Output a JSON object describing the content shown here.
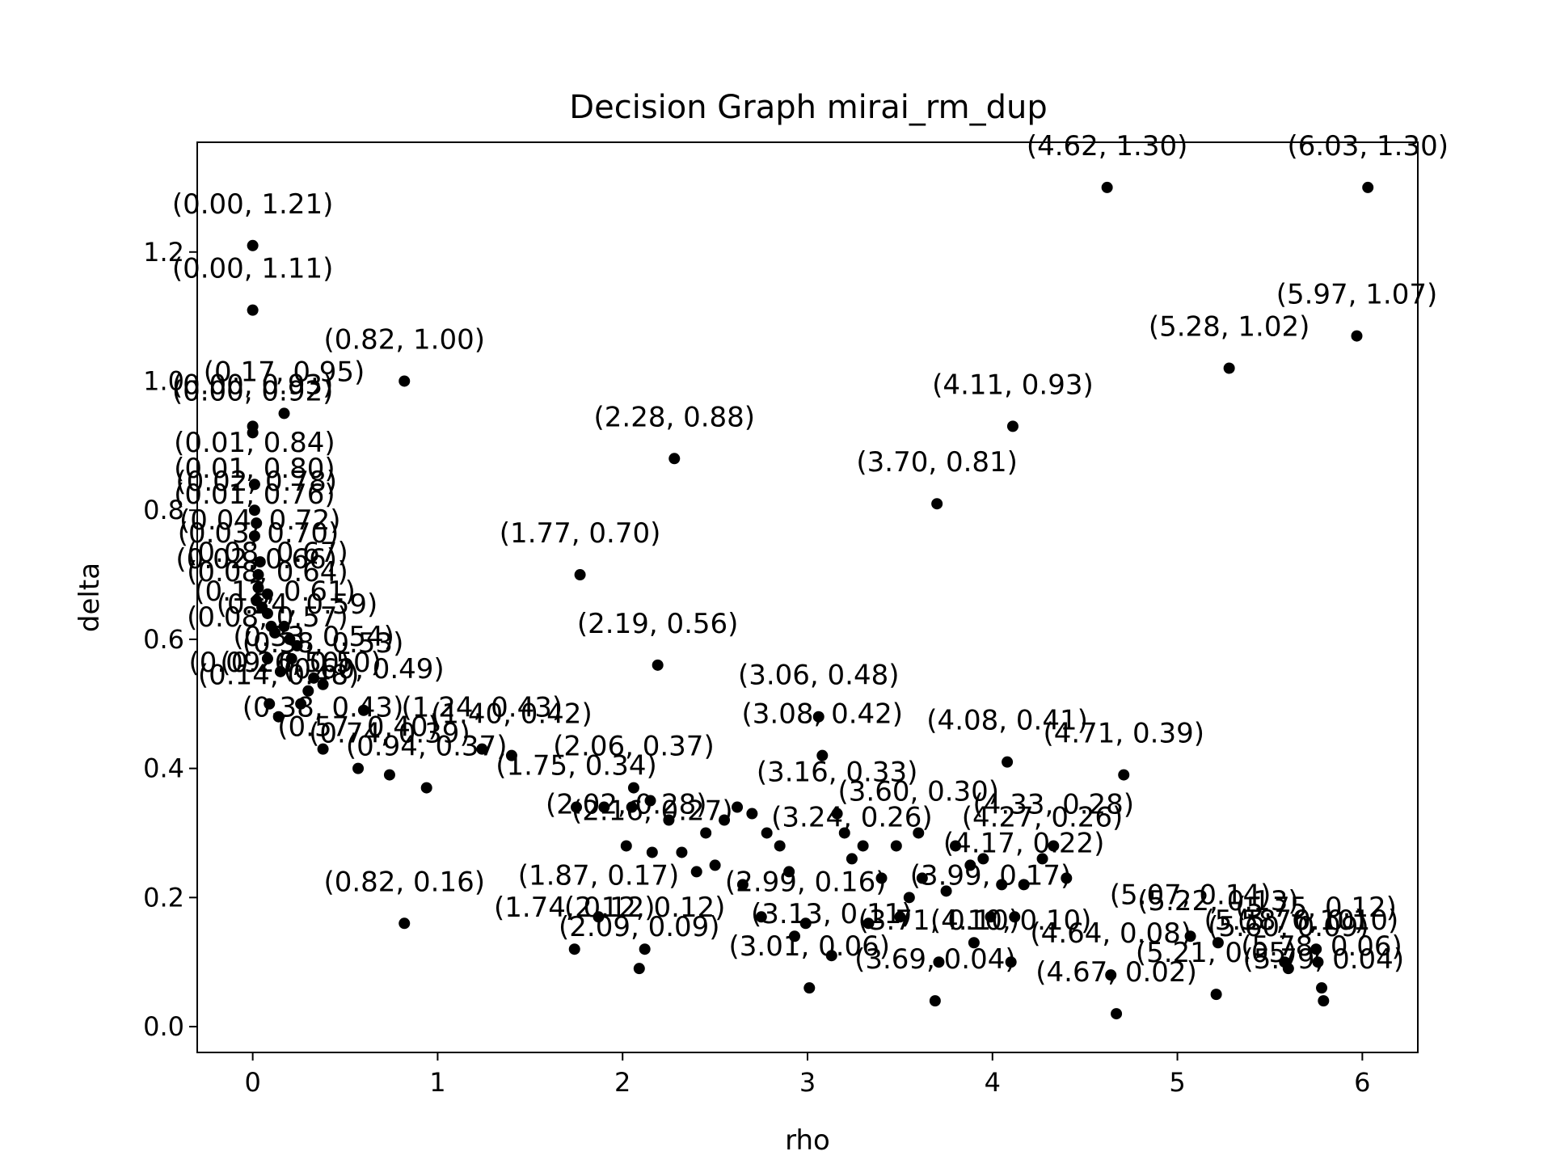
{
  "chart_data": {
    "type": "scatter",
    "title": "Decision Graph mirai_rm_dup",
    "xlabel": "rho",
    "ylabel": "delta",
    "xlim": [
      -0.3,
      6.3
    ],
    "ylim": [
      -0.04,
      1.37
    ],
    "xticks": [
      0,
      1,
      2,
      3,
      4,
      5,
      6
    ],
    "yticks": [
      0.0,
      0.2,
      0.4,
      0.6,
      0.8,
      1.0,
      1.2
    ],
    "xtick_labels": [
      "0",
      "1",
      "2",
      "3",
      "4",
      "5",
      "6"
    ],
    "ytick_labels": [
      "0.0",
      "0.2",
      "0.4",
      "0.6",
      "0.8",
      "1.0",
      "1.2"
    ],
    "marker_color": "#000000",
    "grid": false,
    "points": [
      {
        "x": 4.62,
        "y": 1.3,
        "label": "(4.62, 1.30)"
      },
      {
        "x": 6.03,
        "y": 1.3,
        "label": "(6.03, 1.30)"
      },
      {
        "x": 0.0,
        "y": 1.21,
        "label": "(0.00, 1.21)"
      },
      {
        "x": 0.0,
        "y": 1.11,
        "label": "(0.00, 1.11)"
      },
      {
        "x": 5.97,
        "y": 1.07,
        "label": "(5.97, 1.07)"
      },
      {
        "x": 5.28,
        "y": 1.02,
        "label": "(5.28, 1.02)"
      },
      {
        "x": 0.82,
        "y": 1.0,
        "label": "(0.82, 1.00)"
      },
      {
        "x": 0.17,
        "y": 0.95,
        "label": "(0.17, 0.95)"
      },
      {
        "x": 4.11,
        "y": 0.93,
        "label": "(4.11, 0.93)"
      },
      {
        "x": 0.0,
        "y": 0.93,
        "label": "(0.00, 0.93)"
      },
      {
        "x": 0.0,
        "y": 0.92,
        "label": "(0.00, 0.92)"
      },
      {
        "x": 2.28,
        "y": 0.88,
        "label": "(2.28, 0.88)"
      },
      {
        "x": 0.01,
        "y": 0.84,
        "label": "(0.01, 0.84)"
      },
      {
        "x": 3.7,
        "y": 0.81,
        "label": "(3.70, 0.81)"
      },
      {
        "x": 0.01,
        "y": 0.8,
        "label": "(0.01, 0.80)"
      },
      {
        "x": 0.02,
        "y": 0.78,
        "label": "(0.02, 0.78)"
      },
      {
        "x": 0.01,
        "y": 0.76,
        "label": "(0.01, 0.76)"
      },
      {
        "x": 0.04,
        "y": 0.72,
        "label": "(0.04, 0.72)"
      },
      {
        "x": 1.77,
        "y": 0.7,
        "label": "(1.77, 0.70)"
      },
      {
        "x": 0.03,
        "y": 0.7,
        "label": "(0.03, 0.70)"
      },
      {
        "x": 0.08,
        "y": 0.67,
        "label": "(0.08, 0.67)"
      },
      {
        "x": 0.02,
        "y": 0.66,
        "label": "(0.02, 0.66)"
      },
      {
        "x": 0.08,
        "y": 0.64,
        "label": "(0.08, 0.64)"
      },
      {
        "x": 0.12,
        "y": 0.61,
        "label": "(0.12, 0.61)"
      },
      {
        "x": 0.24,
        "y": 0.59,
        "label": "(0.24, 0.59)"
      },
      {
        "x": 0.08,
        "y": 0.57,
        "label": "(0.08, 0.57)"
      },
      {
        "x": 2.19,
        "y": 0.56,
        "label": "(2.19, 0.56)"
      },
      {
        "x": 0.33,
        "y": 0.54,
        "label": "(0.33, 0.54)"
      },
      {
        "x": 0.38,
        "y": 0.53,
        "label": "(0.38, 0.53)"
      },
      {
        "x": 0.09,
        "y": 0.5,
        "label": "(0.09, 0.50)"
      },
      {
        "x": 0.26,
        "y": 0.5,
        "label": "(0.26, 0.50)"
      },
      {
        "x": 0.6,
        "y": 0.49,
        "label": "(0.60, 0.49)"
      },
      {
        "x": 3.06,
        "y": 0.48,
        "label": "(3.06, 0.48)"
      },
      {
        "x": 0.14,
        "y": 0.48,
        "label": "(0.14, 0.48)"
      },
      {
        "x": 0.38,
        "y": 0.43,
        "label": "(0.38, 0.43)"
      },
      {
        "x": 1.24,
        "y": 0.43,
        "label": "(1.24, 0.43)"
      },
      {
        "x": 3.08,
        "y": 0.42,
        "label": "(3.08, 0.42)"
      },
      {
        "x": 1.4,
        "y": 0.42,
        "label": "(1.40, 0.42)"
      },
      {
        "x": 4.08,
        "y": 0.41,
        "label": "(4.08, 0.41)"
      },
      {
        "x": 0.57,
        "y": 0.4,
        "label": "(0.57, 0.40)"
      },
      {
        "x": 4.71,
        "y": 0.39,
        "label": "(4.71, 0.39)"
      },
      {
        "x": 0.74,
        "y": 0.39,
        "label": "(0.74, 0.39)"
      },
      {
        "x": 0.94,
        "y": 0.37,
        "label": "(0.94, 0.37)"
      },
      {
        "x": 2.06,
        "y": 0.37,
        "label": "(2.06, 0.37)"
      },
      {
        "x": 1.75,
        "y": 0.34,
        "label": "(1.75, 0.34)"
      },
      {
        "x": 3.16,
        "y": 0.33,
        "label": "(3.16, 0.33)"
      },
      {
        "x": 3.6,
        "y": 0.3,
        "label": "(3.60, 0.30)"
      },
      {
        "x": 4.33,
        "y": 0.28,
        "label": "(4.33, 0.28)"
      },
      {
        "x": 4.27,
        "y": 0.26,
        "label": "(4.27, 0.26)"
      },
      {
        "x": 2.02,
        "y": 0.28,
        "label": "(2.02, 0.28)"
      },
      {
        "x": 2.16,
        "y": 0.27,
        "label": "(2.16, 0.27)"
      },
      {
        "x": 3.24,
        "y": 0.26,
        "label": "(3.24, 0.26)"
      },
      {
        "x": 4.17,
        "y": 0.22,
        "label": "(4.17, 0.22)"
      },
      {
        "x": 0.82,
        "y": 0.16,
        "label": "(0.82, 0.16)"
      },
      {
        "x": 1.87,
        "y": 0.17,
        "label": "(1.87, 0.17)"
      },
      {
        "x": 2.99,
        "y": 0.16,
        "label": "(2.99, 0.16)"
      },
      {
        "x": 3.99,
        "y": 0.17,
        "label": "(3.99, 0.17)"
      },
      {
        "x": 1.74,
        "y": 0.12,
        "label": "(1.74, 0.12)"
      },
      {
        "x": 2.12,
        "y": 0.12,
        "label": "(2.12, 0.12)"
      },
      {
        "x": 2.09,
        "y": 0.09,
        "label": "(2.09, 0.09)"
      },
      {
        "x": 3.13,
        "y": 0.11,
        "label": "(3.13, 0.11)"
      },
      {
        "x": 3.71,
        "y": 0.1,
        "label": "(3.71, 0.10)"
      },
      {
        "x": 4.1,
        "y": 0.1,
        "label": "(4.10, 0.10)"
      },
      {
        "x": 4.64,
        "y": 0.08,
        "label": "(4.64, 0.08)"
      },
      {
        "x": 3.01,
        "y": 0.06,
        "label": "(3.01, 0.06)"
      },
      {
        "x": 3.69,
        "y": 0.04,
        "label": "(3.69, 0.04)"
      },
      {
        "x": 4.67,
        "y": 0.02,
        "label": "(4.67, 0.02)"
      },
      {
        "x": 5.22,
        "y": 0.13,
        "label": "(5.22, 0.13)"
      },
      {
        "x": 5.07,
        "y": 0.14,
        "label": "(5.07, 0.14)"
      },
      {
        "x": 5.58,
        "y": 0.1,
        "label": "(5.58, 0.10)"
      },
      {
        "x": 5.6,
        "y": 0.09,
        "label": "(5.60, 0.09)"
      },
      {
        "x": 5.75,
        "y": 0.12,
        "label": "(5.75, 0.12)"
      },
      {
        "x": 5.21,
        "y": 0.05,
        "label": "(5.21, 0.05)"
      },
      {
        "x": 5.78,
        "y": 0.06,
        "label": "(5.78, 0.06)"
      },
      {
        "x": 5.79,
        "y": 0.04,
        "label": "(5.79, 0.04)"
      },
      {
        "x": 5.76,
        "y": 0.1,
        "label": "(5.76, 0.10)"
      }
    ],
    "unlabeled_points": [
      {
        "x": 2.32,
        "y": 0.27
      },
      {
        "x": 2.45,
        "y": 0.3
      },
      {
        "x": 2.55,
        "y": 0.32
      },
      {
        "x": 2.62,
        "y": 0.34
      },
      {
        "x": 2.7,
        "y": 0.33
      },
      {
        "x": 2.78,
        "y": 0.3
      },
      {
        "x": 2.85,
        "y": 0.28
      },
      {
        "x": 2.9,
        "y": 0.24
      },
      {
        "x": 2.4,
        "y": 0.24
      },
      {
        "x": 2.5,
        "y": 0.25
      },
      {
        "x": 2.65,
        "y": 0.22
      },
      {
        "x": 2.75,
        "y": 0.17
      },
      {
        "x": 2.93,
        "y": 0.14
      },
      {
        "x": 3.2,
        "y": 0.3
      },
      {
        "x": 3.3,
        "y": 0.28
      },
      {
        "x": 3.4,
        "y": 0.23
      },
      {
        "x": 3.48,
        "y": 0.28
      },
      {
        "x": 3.55,
        "y": 0.2
      },
      {
        "x": 3.62,
        "y": 0.23
      },
      {
        "x": 3.75,
        "y": 0.21
      },
      {
        "x": 3.8,
        "y": 0.28
      },
      {
        "x": 3.88,
        "y": 0.25
      },
      {
        "x": 3.95,
        "y": 0.26
      },
      {
        "x": 3.9,
        "y": 0.13
      },
      {
        "x": 4.05,
        "y": 0.22
      },
      {
        "x": 4.12,
        "y": 0.17
      },
      {
        "x": 3.33,
        "y": 0.16
      },
      {
        "x": 3.5,
        "y": 0.17
      },
      {
        "x": 2.25,
        "y": 0.32
      },
      {
        "x": 2.05,
        "y": 0.34
      },
      {
        "x": 1.9,
        "y": 0.34
      },
      {
        "x": 2.15,
        "y": 0.35
      },
      {
        "x": 4.4,
        "y": 0.23
      },
      {
        "x": 0.03,
        "y": 0.68
      },
      {
        "x": 0.05,
        "y": 0.65
      },
      {
        "x": 0.1,
        "y": 0.62
      },
      {
        "x": 0.17,
        "y": 0.62
      },
      {
        "x": 0.2,
        "y": 0.6
      },
      {
        "x": 0.15,
        "y": 0.55
      },
      {
        "x": 0.21,
        "y": 0.57
      },
      {
        "x": 0.3,
        "y": 0.52
      }
    ]
  }
}
